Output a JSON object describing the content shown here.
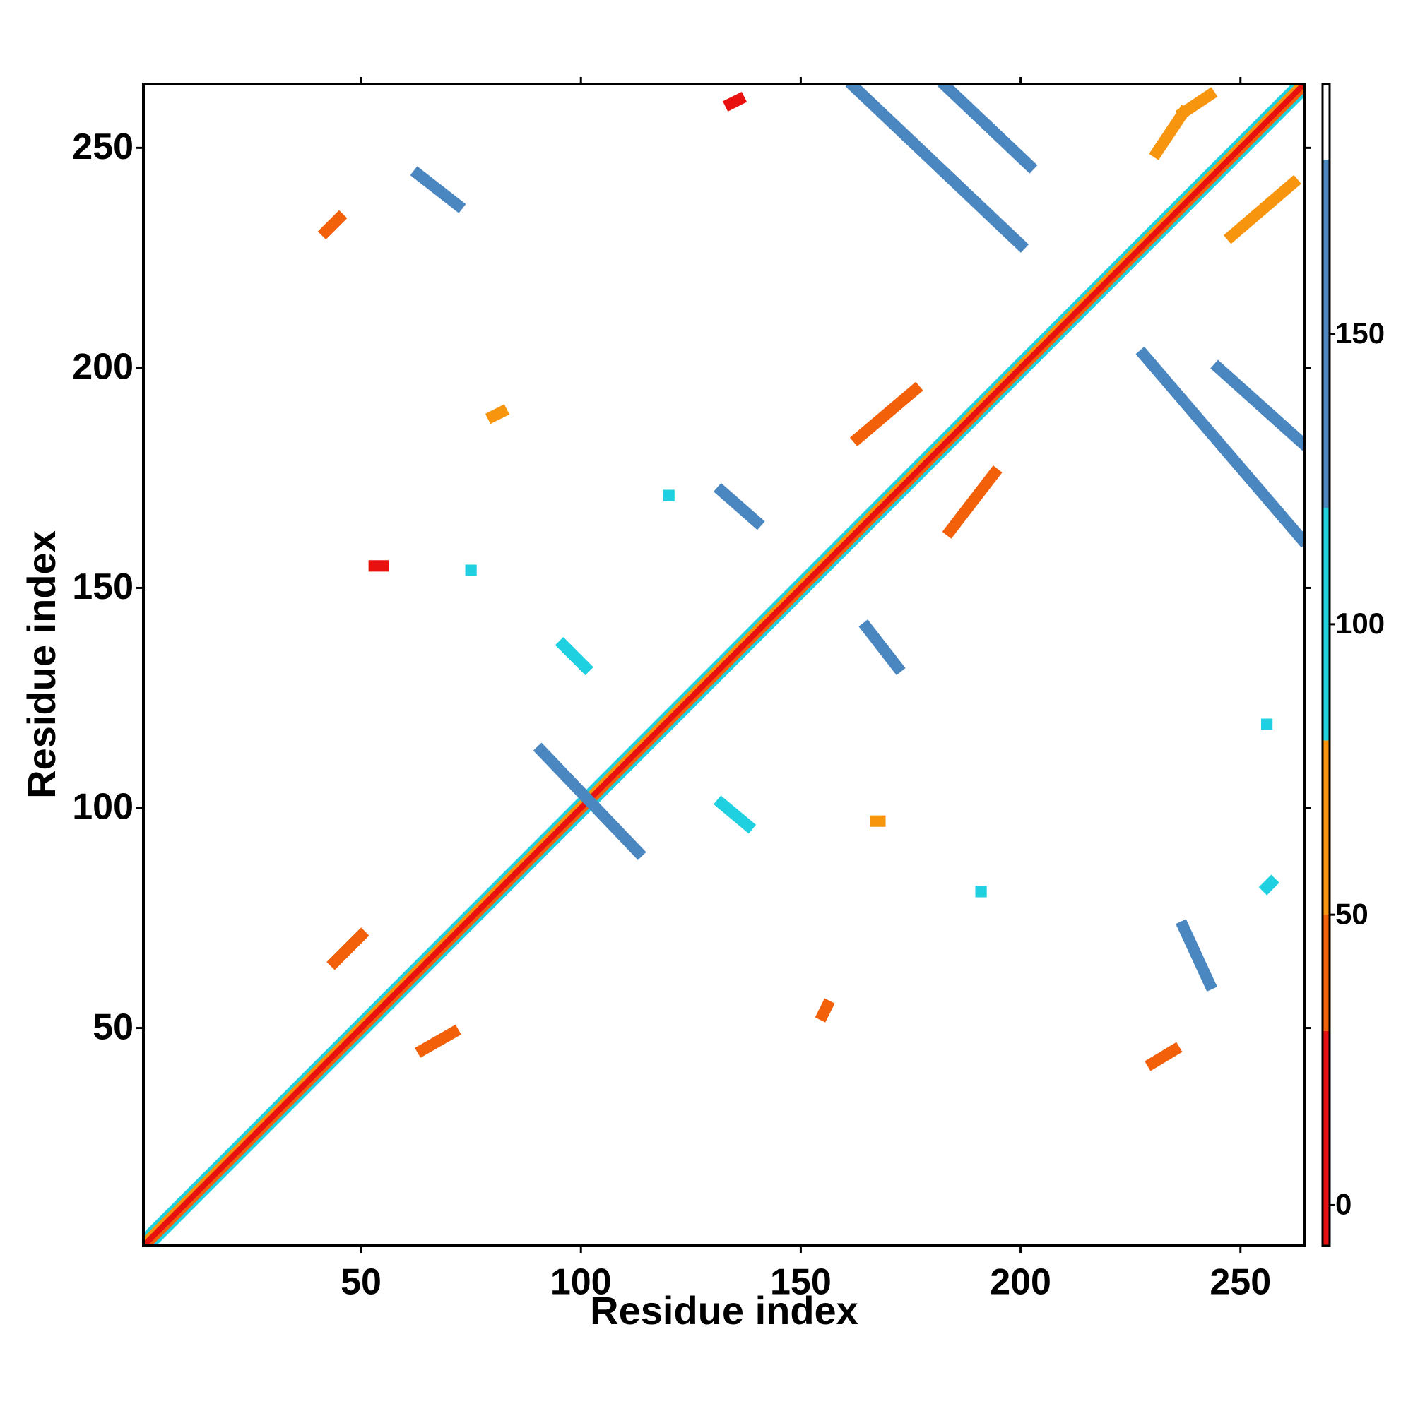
{
  "chart_data": {
    "type": "heatmap",
    "x_label": "Residue index",
    "y_label": "Residue index",
    "xlim": [
      0.5,
      264.5
    ],
    "ylim": [
      0.5,
      264.5
    ],
    "xticks": [
      50,
      100,
      150,
      200,
      250
    ],
    "yticks": [
      50,
      100,
      150,
      200,
      250
    ],
    "colorbar": {
      "levels": [
        -7,
        30,
        50,
        80,
        120,
        180,
        193
      ],
      "colors": [
        "#e8110f",
        "#f2600a",
        "#f7960e",
        "#1fd0e0",
        "#4a86c0",
        "#ffffff"
      ],
      "ticks": [
        0,
        50,
        100,
        150
      ]
    },
    "features": [
      {
        "x": [
          1,
          262
        ],
        "y": [
          3,
          264
        ],
        "value": 100
      },
      {
        "x": [
          3,
          264
        ],
        "y": [
          1,
          262
        ],
        "value": 100
      },
      {
        "x": [
          1,
          263
        ],
        "y": [
          2,
          264
        ],
        "value": 60
      },
      {
        "x": [
          2,
          264
        ],
        "y": [
          1,
          263
        ],
        "value": 40
      },
      {
        "x": [
          1,
          264
        ],
        "y": [
          1,
          264
        ],
        "value": 10
      },
      {
        "x": [
          162,
          200
        ],
        "y": [
          264,
          228
        ],
        "value": 150
      },
      {
        "x": [
          183,
          202
        ],
        "y": [
          264,
          246
        ],
        "value": 150
      },
      {
        "x": [
          228,
          264
        ],
        "y": [
          203,
          161
        ],
        "value": 150
      },
      {
        "x": [
          245,
          264
        ],
        "y": [
          200,
          183
        ],
        "value": 150
      },
      {
        "x": [
          91,
          113
        ],
        "y": [
          113,
          90
        ],
        "value": 150
      },
      {
        "x": [
          63,
          72
        ],
        "y": [
          244,
          237
        ],
        "value": 150
      },
      {
        "x": [
          132,
          140
        ],
        "y": [
          172,
          165
        ],
        "value": 150
      },
      {
        "x": [
          96,
          101
        ],
        "y": [
          137,
          132
        ],
        "value": 100
      },
      {
        "x": [
          165,
          172
        ],
        "y": [
          141,
          132
        ],
        "value": 150
      },
      {
        "x": [
          132,
          138
        ],
        "y": [
          101,
          96
        ],
        "value": 100
      },
      {
        "x": [
          237,
          243
        ],
        "y": [
          73,
          60
        ],
        "value": 150
      },
      {
        "x": [
          44,
          50
        ],
        "y": [
          65,
          71
        ],
        "value": 40
      },
      {
        "x": [
          64,
          71
        ],
        "y": [
          45,
          49
        ],
        "value": 40
      },
      {
        "x": [
          42,
          45
        ],
        "y": [
          231,
          234
        ],
        "value": 40
      },
      {
        "x": [
          230,
          235
        ],
        "y": [
          42,
          45
        ],
        "value": 40
      },
      {
        "x": [
          231,
          237
        ],
        "y": [
          249,
          258
        ],
        "value": 60
      },
      {
        "x": [
          237,
          243
        ],
        "y": [
          258,
          262
        ],
        "value": 60
      },
      {
        "x": [
          248,
          262
        ],
        "y": [
          230,
          242
        ],
        "value": 60
      },
      {
        "x": [
          163,
          176
        ],
        "y": [
          184,
          195
        ],
        "value": 40
      },
      {
        "x": [
          184,
          194
        ],
        "y": [
          163,
          176
        ],
        "value": 40
      },
      {
        "x": [
          134,
          136
        ],
        "y": [
          260,
          261
        ],
        "value": 10
      },
      {
        "x": [
          120,
          120
        ],
        "y": [
          171,
          171
        ],
        "value": 100
      },
      {
        "x": [
          191,
          191
        ],
        "y": [
          81,
          81
        ],
        "value": 100
      },
      {
        "x": [
          75,
          75
        ],
        "y": [
          154,
          154
        ],
        "value": 100
      },
      {
        "x": [
          53,
          55
        ],
        "y": [
          155,
          155
        ],
        "value": 10
      },
      {
        "x": [
          80,
          82
        ],
        "y": [
          189,
          190
        ],
        "value": 60
      },
      {
        "x": [
          167,
          168
        ],
        "y": [
          97,
          97
        ],
        "value": 60
      },
      {
        "x": [
          256,
          256
        ],
        "y": [
          119,
          119
        ],
        "value": 100
      },
      {
        "x": [
          256,
          257
        ],
        "y": [
          82,
          83
        ],
        "value": 100
      },
      {
        "x": [
          155,
          156
        ],
        "y": [
          53,
          55
        ],
        "value": 40
      }
    ]
  }
}
